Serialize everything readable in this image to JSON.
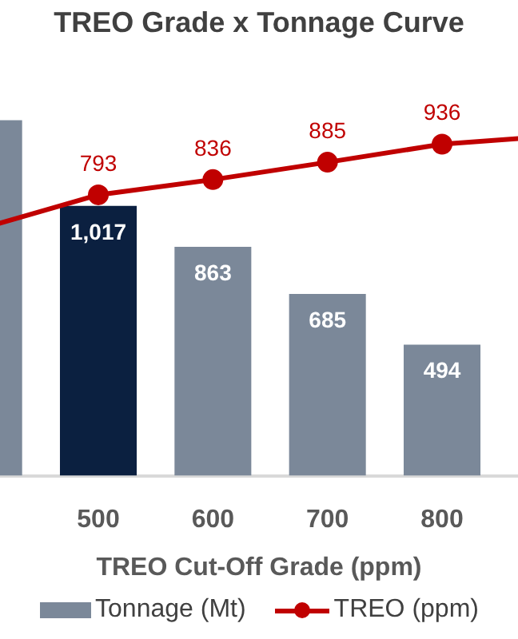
{
  "chart_data": {
    "type": "bar",
    "title": "TREO Grade x Tonnage Curve",
    "xlabel": "TREO Cut-Off Grade (ppm)",
    "categories": [
      null,
      "500",
      "600",
      "700",
      "800",
      null
    ],
    "series": [
      {
        "name": "Tonnage (Mt)",
        "color": "#7b8899",
        "colors": [
          "#7b8899",
          "#0b2040",
          "#7b8899",
          "#7b8899",
          "#7b8899",
          "#7b8899"
        ],
        "values": [
          1340,
          1017,
          863,
          685,
          494,
          null
        ],
        "value_labels": [
          null,
          "1,017",
          "863",
          "685",
          "494",
          null
        ]
      },
      {
        "name": "TREO (ppm)",
        "type": "line",
        "axis": "y2",
        "color": "#c00000",
        "values": [
          700,
          793,
          836,
          885,
          936,
          960
        ],
        "value_labels": [
          null,
          "793",
          "836",
          "885",
          "936",
          null
        ]
      }
    ],
    "legend": "bottom",
    "marker": "circle",
    "line_style": "solid",
    "grid": false,
    "tick_labels": "x"
  }
}
